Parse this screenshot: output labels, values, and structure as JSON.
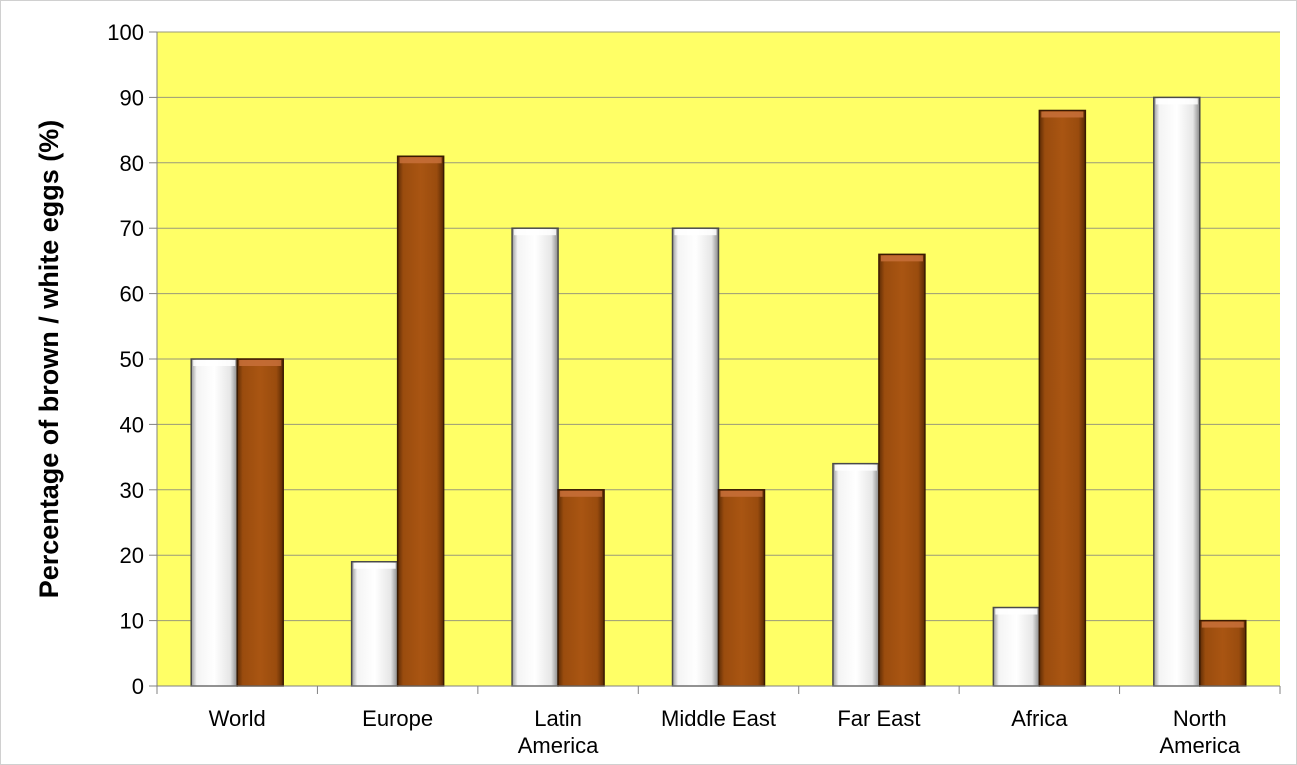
{
  "chart_data": {
    "type": "bar",
    "title": "",
    "xlabel": "",
    "ylabel": "Percentage of brown / white eggs (%)",
    "ylim": [
      0,
      100
    ],
    "yticks": [
      0,
      10,
      20,
      30,
      40,
      50,
      60,
      70,
      80,
      90,
      100
    ],
    "grid": true,
    "legend": "none",
    "categories": [
      [
        "World"
      ],
      [
        "Europe"
      ],
      [
        "Latin",
        "America"
      ],
      [
        "Middle East"
      ],
      [
        "Far East"
      ],
      [
        "Africa"
      ],
      [
        "North",
        "America"
      ]
    ],
    "series": [
      {
        "values": [
          50,
          19,
          70,
          70,
          34,
          12,
          90
        ],
        "color": "#ffffff"
      },
      {
        "values": [
          50,
          81,
          30,
          30,
          66,
          88,
          10
        ],
        "color": "#a0500f"
      }
    ],
    "plot_background": "#ffff66"
  }
}
